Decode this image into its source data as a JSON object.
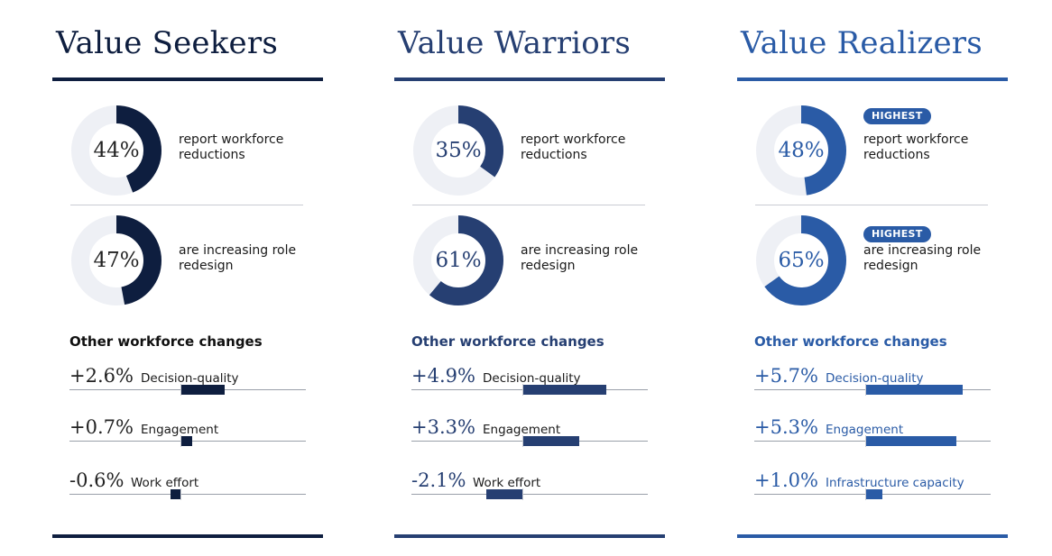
{
  "chart_data": [
    {
      "type": "donut-and-bar",
      "title": "Value Seekers",
      "color": "#0e1e3f",
      "donuts": [
        {
          "value": 44,
          "label": "44%",
          "text": "report workforce reductions",
          "badge": ""
        },
        {
          "value": 47,
          "label": "47%",
          "text": "are increasing role redesign",
          "badge": ""
        }
      ],
      "subheading": "Other workforce changes",
      "metrics": [
        {
          "value": 2.6,
          "label": "+2.6%",
          "name": "Decision-quality"
        },
        {
          "value": 0.7,
          "label": "+0.7%",
          "name": "Engagement"
        },
        {
          "value": -0.6,
          "label": "-0.6%",
          "name": "Work effort"
        }
      ]
    },
    {
      "type": "donut-and-bar",
      "title": "Value Warriors",
      "color": "#263f72",
      "donuts": [
        {
          "value": 35,
          "label": "35%",
          "text": "report workforce reductions",
          "badge": ""
        },
        {
          "value": 61,
          "label": "61%",
          "text": "are increasing role redesign",
          "badge": ""
        }
      ],
      "subheading": "Other workforce changes",
      "metrics": [
        {
          "value": 4.9,
          "label": "+4.9%",
          "name": "Decision-quality"
        },
        {
          "value": 3.3,
          "label": "+3.3%",
          "name": "Engagement"
        },
        {
          "value": -2.1,
          "label": "-2.1%",
          "name": "Work effort"
        }
      ]
    },
    {
      "type": "donut-and-bar",
      "title": "Value Realizers",
      "color": "#2a5ba6",
      "donuts": [
        {
          "value": 48,
          "label": "48%",
          "text": "report workforce reductions",
          "badge": "HIGHEST"
        },
        {
          "value": 65,
          "label": "65%",
          "text": "are increasing role redesign",
          "badge": "HIGHEST"
        }
      ],
      "subheading": "Other workforce changes",
      "metrics": [
        {
          "value": 5.7,
          "label": "+5.7%",
          "name": "Decision-quality"
        },
        {
          "value": 5.3,
          "label": "+5.3%",
          "name": "Engagement"
        },
        {
          "value": 1.0,
          "label": "+1.0%",
          "name": "Infrastructure capacity"
        }
      ]
    }
  ],
  "colors": {
    "ring_track": "#eef0f5",
    "rule_color": "#9aa0aa"
  }
}
